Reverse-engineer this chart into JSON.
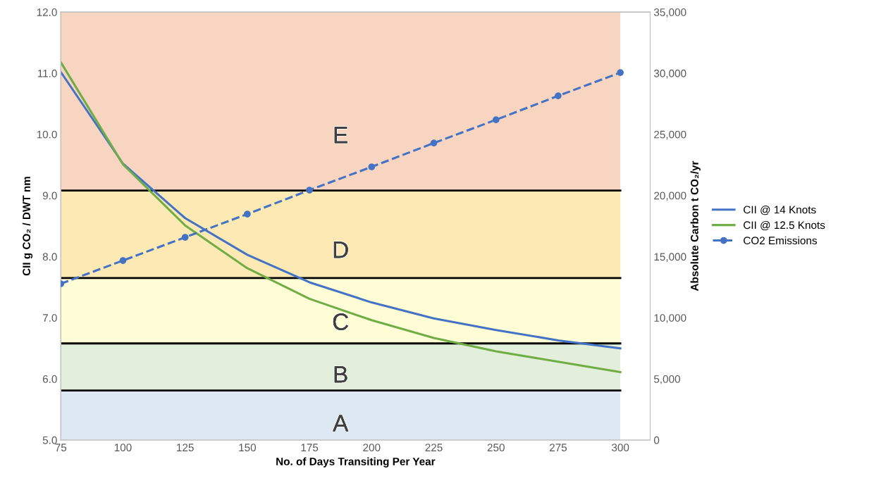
{
  "chart_data": {
    "type": "line",
    "xlabel": "No. of Days Transiting Per Year",
    "ylabel": "CII g CO₂ / DWT nm",
    "y2label": "Absolute Carbon t CO₂/yr",
    "x": [
      75,
      100,
      125,
      150,
      175,
      200,
      225,
      250,
      275,
      300
    ],
    "series": [
      {
        "name": "CII @ 14 Knots",
        "color": "#4472c4",
        "values": [
          11.02,
          9.52,
          8.63,
          8.03,
          7.58,
          7.25,
          6.99,
          6.8,
          6.63,
          6.5
        ]
      },
      {
        "name": "CII @ 12.5 Knots",
        "color": "#70ad47",
        "values": [
          11.18,
          9.51,
          8.51,
          7.81,
          7.31,
          6.96,
          6.67,
          6.45,
          6.28,
          6.11
        ]
      },
      {
        "name": "CO2 Emissions",
        "color": "#4472c4",
        "axis": "y2",
        "line_style": "dashed",
        "marker": "circle",
        "values": [
          12780,
          14680,
          16580,
          18480,
          20440,
          22340,
          24290,
          26190,
          28150,
          30050
        ]
      }
    ],
    "xlim": [
      75,
      312
    ],
    "xticks": [
      75,
      100,
      125,
      150,
      175,
      200,
      225,
      250,
      275,
      300
    ],
    "ylim": [
      5.0,
      12.0
    ],
    "yticks": [
      {
        "value": 5,
        "label": "5.0"
      },
      {
        "value": 6,
        "label": "6.0"
      },
      {
        "value": 7,
        "label": "7.0"
      },
      {
        "value": 8,
        "label": "8.0"
      },
      {
        "value": 9,
        "label": "9.0"
      },
      {
        "value": 10,
        "label": "10.0"
      },
      {
        "value": 11,
        "label": "11.0"
      },
      {
        "value": 12,
        "label": "12.0"
      }
    ],
    "y2lim": [
      0,
      35000
    ],
    "y2ticks": [
      0,
      {
        "value": 5000,
        "label": "5,000"
      },
      {
        "value": 10000,
        "label": "10,000"
      },
      {
        "value": 15000,
        "label": "15,000"
      },
      {
        "value": 20000,
        "label": "20,000"
      },
      {
        "value": 25000,
        "label": "25,000"
      },
      {
        "value": 30000,
        "label": "30,000"
      },
      {
        "value": 35000,
        "label": "35,000"
      }
    ],
    "bands": [
      {
        "axis": "y",
        "from": 5.0,
        "to": 5.81,
        "label": "A",
        "color": "#dde8f3"
      },
      {
        "axis": "y",
        "from": 5.81,
        "to": 6.58,
        "label": "B",
        "color": "#e2efda"
      },
      {
        "axis": "y",
        "from": 6.58,
        "to": 7.65,
        "label": "C",
        "color": "#fffdd6"
      },
      {
        "axis": "y",
        "from": 7.65,
        "to": 9.08,
        "label": "D",
        "color": "#fde9b4"
      },
      {
        "axis": "y",
        "from": 9.08,
        "to": 12.0,
        "label": "E",
        "color": "#f8d5c0"
      }
    ],
    "ref_lines": [
      {
        "axis": "y",
        "value": 5.81,
        "color": "#000000"
      },
      {
        "axis": "y",
        "value": 6.58,
        "color": "#000000"
      },
      {
        "axis": "y",
        "value": 7.65,
        "color": "#000000"
      },
      {
        "axis": "y",
        "value": 9.08,
        "color": "#000000"
      }
    ],
    "legend": "right",
    "grid": false
  }
}
